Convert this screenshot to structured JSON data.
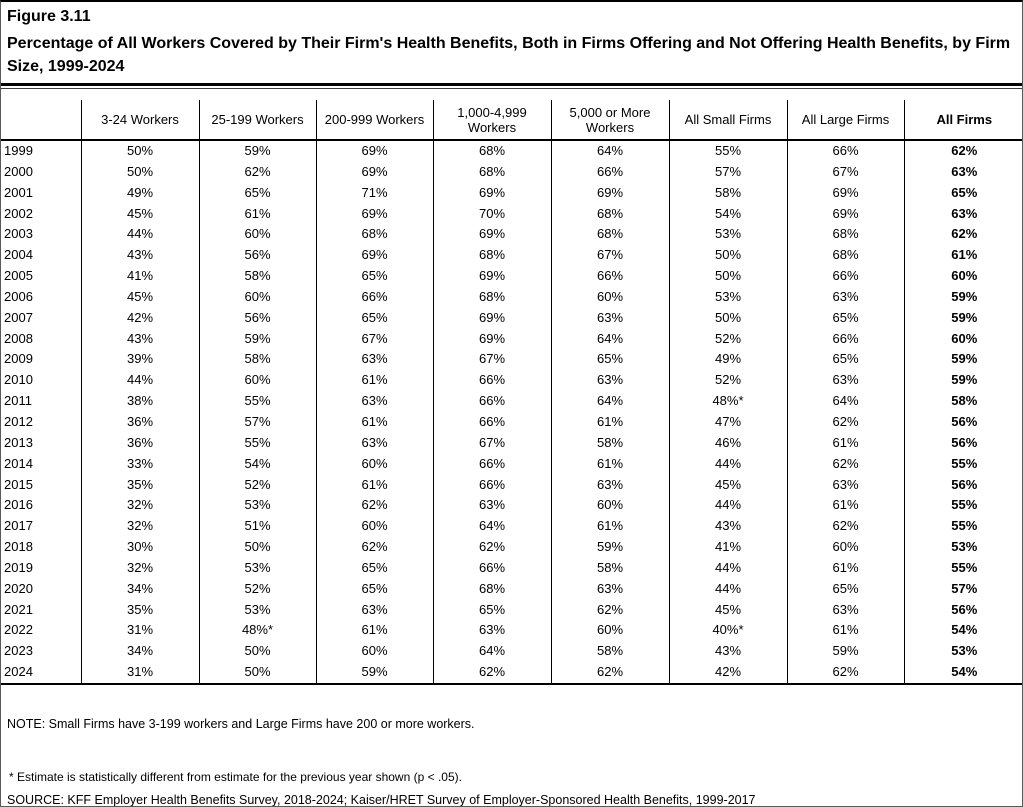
{
  "figure": {
    "label": "Figure 3.11",
    "title": "Percentage of All Workers Covered by Their Firm's Health Benefits, Both in Firms Offering and Not Offering Health Benefits, by Firm Size, 1999-2024"
  },
  "chart_data": {
    "type": "table",
    "title": "Percentage of All Workers Covered by Their Firm's Health Benefits, Both in Firms Offering and Not Offering Health Benefits, by Firm Size, 1999-2024",
    "columns": [
      "",
      "3-24 Workers",
      "25-199 Workers",
      "200-999 Workers",
      "1,000-4,999 Workers",
      "5,000 or More Workers",
      "All Small Firms",
      "All Large Firms",
      "All Firms"
    ],
    "bold_column": "All Firms",
    "rows": [
      [
        "1999",
        "50%",
        "59%",
        "69%",
        "68%",
        "64%",
        "55%",
        "66%",
        "62%"
      ],
      [
        "2000",
        "50%",
        "62%",
        "69%",
        "68%",
        "66%",
        "57%",
        "67%",
        "63%"
      ],
      [
        "2001",
        "49%",
        "65%",
        "71%",
        "69%",
        "69%",
        "58%",
        "69%",
        "65%"
      ],
      [
        "2002",
        "45%",
        "61%",
        "69%",
        "70%",
        "68%",
        "54%",
        "69%",
        "63%"
      ],
      [
        "2003",
        "44%",
        "60%",
        "68%",
        "69%",
        "68%",
        "53%",
        "68%",
        "62%"
      ],
      [
        "2004",
        "43%",
        "56%",
        "69%",
        "68%",
        "67%",
        "50%",
        "68%",
        "61%"
      ],
      [
        "2005",
        "41%",
        "58%",
        "65%",
        "69%",
        "66%",
        "50%",
        "66%",
        "60%"
      ],
      [
        "2006",
        "45%",
        "60%",
        "66%",
        "68%",
        "60%",
        "53%",
        "63%",
        "59%"
      ],
      [
        "2007",
        "42%",
        "56%",
        "65%",
        "69%",
        "63%",
        "50%",
        "65%",
        "59%"
      ],
      [
        "2008",
        "43%",
        "59%",
        "67%",
        "69%",
        "64%",
        "52%",
        "66%",
        "60%"
      ],
      [
        "2009",
        "39%",
        "58%",
        "63%",
        "67%",
        "65%",
        "49%",
        "65%",
        "59%"
      ],
      [
        "2010",
        "44%",
        "60%",
        "61%",
        "66%",
        "63%",
        "52%",
        "63%",
        "59%"
      ],
      [
        "2011",
        "38%",
        "55%",
        "63%",
        "66%",
        "64%",
        "48%*",
        "64%",
        "58%"
      ],
      [
        "2012",
        "36%",
        "57%",
        "61%",
        "66%",
        "61%",
        "47%",
        "62%",
        "56%"
      ],
      [
        "2013",
        "36%",
        "55%",
        "63%",
        "67%",
        "58%",
        "46%",
        "61%",
        "56%"
      ],
      [
        "2014",
        "33%",
        "54%",
        "60%",
        "66%",
        "61%",
        "44%",
        "62%",
        "55%"
      ],
      [
        "2015",
        "35%",
        "52%",
        "61%",
        "66%",
        "63%",
        "45%",
        "63%",
        "56%"
      ],
      [
        "2016",
        "32%",
        "53%",
        "62%",
        "63%",
        "60%",
        "44%",
        "61%",
        "55%"
      ],
      [
        "2017",
        "32%",
        "51%",
        "60%",
        "64%",
        "61%",
        "43%",
        "62%",
        "55%"
      ],
      [
        "2018",
        "30%",
        "50%",
        "62%",
        "62%",
        "59%",
        "41%",
        "60%",
        "53%"
      ],
      [
        "2019",
        "32%",
        "53%",
        "65%",
        "66%",
        "58%",
        "44%",
        "61%",
        "55%"
      ],
      [
        "2020",
        "34%",
        "52%",
        "65%",
        "68%",
        "63%",
        "44%",
        "65%",
        "57%"
      ],
      [
        "2021",
        "35%",
        "53%",
        "63%",
        "65%",
        "62%",
        "45%",
        "63%",
        "56%"
      ],
      [
        "2022",
        "31%",
        "48%*",
        "61%",
        "63%",
        "60%",
        "40%*",
        "61%",
        "54%"
      ],
      [
        "2023",
        "34%",
        "50%",
        "60%",
        "64%",
        "58%",
        "43%",
        "59%",
        "53%"
      ],
      [
        "2024",
        "31%",
        "50%",
        "59%",
        "62%",
        "62%",
        "42%",
        "62%",
        "54%"
      ]
    ]
  },
  "notes": {
    "note": "NOTE: Small Firms have 3-199 workers and Large Firms have 200 or more workers.",
    "footnote": "* Estimate is statistically different from estimate for the previous year shown (p < .05).",
    "source": "SOURCE: KFF Employer Health Benefits Survey, 2018-2024; Kaiser/HRET Survey of Employer-Sponsored Health Benefits, 1999-2017"
  }
}
